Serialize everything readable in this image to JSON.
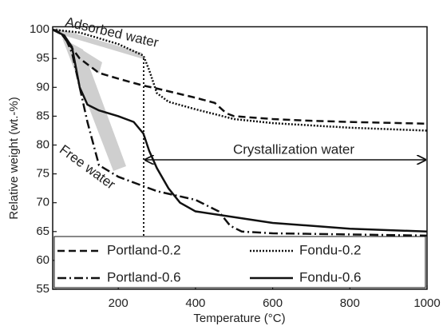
{
  "chart_data": {
    "type": "line",
    "x_label": "Temperature (°C)",
    "y_label": "Relative weight (wt.-%)",
    "xlim": [
      30,
      1000
    ],
    "xticks": [
      200,
      400,
      600,
      800,
      1000
    ],
    "ylim": [
      55,
      100.5
    ],
    "yticks": [
      55,
      60,
      65,
      70,
      75,
      80,
      85,
      90,
      95,
      100
    ],
    "grid": false,
    "legend": "lower center",
    "annotations": [
      "Adsorbed water",
      "Free water",
      "Crystallization water"
    ],
    "series": [
      {
        "name": "Portland-0.2",
        "color": "#111111",
        "dash": "dashed",
        "x": [
          30,
          50,
          100,
          150,
          200,
          265,
          300,
          350,
          400,
          450,
          480,
          500,
          600,
          700,
          800,
          1000
        ],
        "values": [
          100,
          99.5,
          95,
          92.5,
          91.5,
          90.3,
          89.8,
          89,
          88.2,
          87.3,
          85.5,
          85,
          84.5,
          84.2,
          84,
          83.7
        ]
      },
      {
        "name": "Fondu-0.2",
        "color": "#111111",
        "dash": "dotted",
        "x": [
          30,
          100,
          200,
          265,
          280,
          300,
          330,
          400,
          500,
          600,
          800,
          1000
        ],
        "values": [
          100,
          99.5,
          97.5,
          95.5,
          93,
          89,
          87.5,
          86.2,
          84.5,
          83.8,
          83,
          82.5
        ]
      },
      {
        "name": "Portland-0.6",
        "color": "#111111",
        "dash": "dashdot",
        "x": [
          30,
          60,
          80,
          100,
          120,
          150,
          200,
          300,
          400,
          460,
          490,
          520,
          600,
          800,
          1000
        ],
        "values": [
          100,
          99,
          96,
          90,
          84,
          76.5,
          74.5,
          72,
          70.5,
          68.5,
          66,
          65,
          64.7,
          64.5,
          64.3
        ]
      },
      {
        "name": "Fondu-0.6",
        "color": "#111111",
        "dash": "solid",
        "x": [
          30,
          60,
          80,
          100,
          120,
          150,
          200,
          240,
          265,
          280,
          300,
          330,
          360,
          400,
          500,
          600,
          800,
          1000
        ],
        "values": [
          100,
          99,
          97,
          90,
          87,
          86,
          85,
          84,
          82,
          79,
          76,
          72.5,
          70,
          68.5,
          67.5,
          66.5,
          65.5,
          65
        ]
      }
    ]
  }
}
